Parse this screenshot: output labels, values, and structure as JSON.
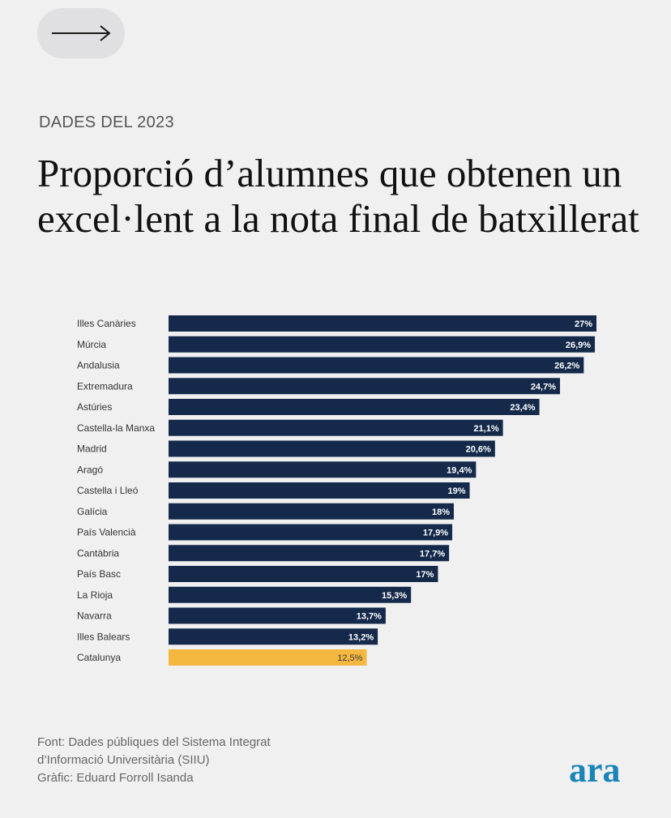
{
  "kicker": "DADES DEL 2023",
  "title": "Proporció d’alumnes que obtenen un excel·lent a la nota final de batxillerat",
  "colors": {
    "bar": "#152a4b",
    "highlight": "#f4b740",
    "logo": "#1a84b9",
    "background": "#f0f0f1"
  },
  "nav": {
    "icon": "arrow-right-icon"
  },
  "chart_data": {
    "type": "bar",
    "orientation": "horizontal",
    "categories": [
      "Illes Canàries",
      "Múrcia",
      "Andalusia",
      "Extremadura",
      "Astúries",
      "Castella-la Manxa",
      "Madrid",
      "Aragó",
      "Castella i Lleó",
      "Galícia",
      "País Valencià",
      "Cantàbria",
      "País Basc",
      "La Rioja",
      "Navarra",
      "Illes Balears",
      "Catalunya"
    ],
    "values": [
      27,
      26.9,
      26.2,
      24.7,
      23.4,
      21.1,
      20.6,
      19.4,
      19,
      18,
      17.9,
      17.7,
      17,
      15.3,
      13.7,
      13.2,
      12.5
    ],
    "labels": [
      "27%",
      "26,9%",
      "26,2%",
      "24,7%",
      "23,4%",
      "21,1%",
      "20,6%",
      "19,4%",
      "19%",
      "18%",
      "17,9%",
      "17,7%",
      "17%",
      "15,3%",
      "13,7%",
      "13,2%",
      "12,5%"
    ],
    "highlight": "Catalunya",
    "xlim": [
      0,
      27
    ],
    "grid": false,
    "legend": "none"
  },
  "footer": {
    "lines": [
      "Font: Dades públiques del Sistema Integrat",
      "d’Informació Universitària (SIIU)",
      "Gràfic: Eduard Forroll Isanda"
    ]
  },
  "logo": "ara"
}
